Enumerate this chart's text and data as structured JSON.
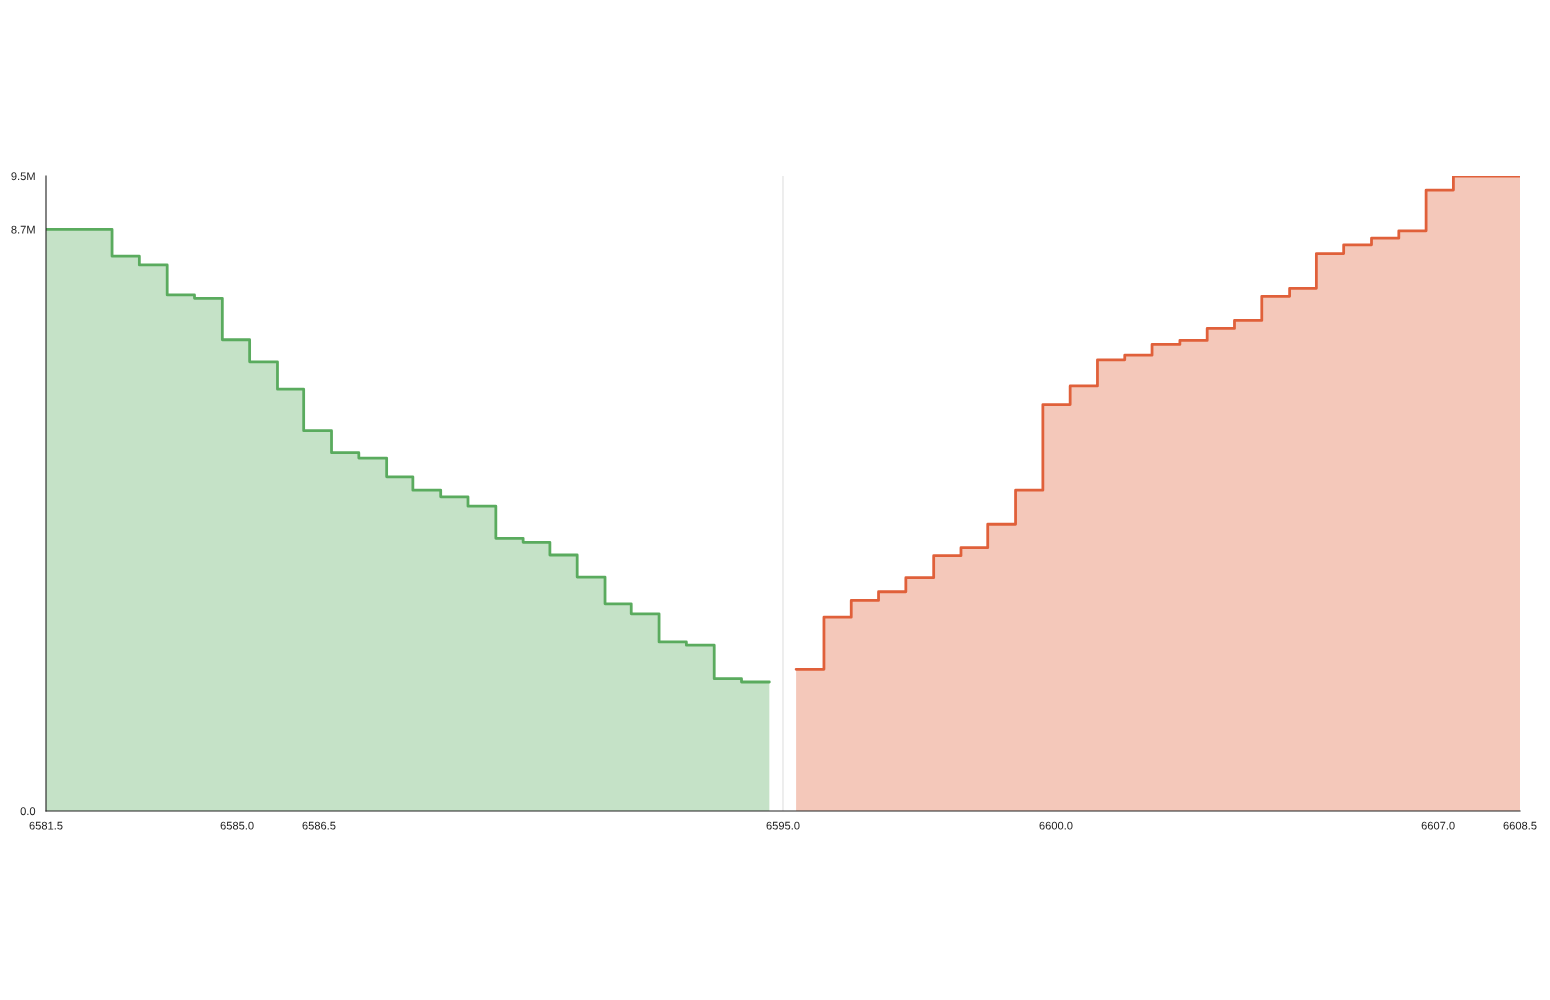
{
  "chart_data": {
    "type": "area",
    "series": [
      {
        "color": "#5aab5e",
        "x": [
          6581.5,
          6582.71,
          6582.71,
          6583.21,
          6583.21,
          6583.72,
          6583.72,
          6584.22,
          6584.22,
          6584.73,
          6584.73,
          6585.23,
          6585.23,
          6585.74,
          6585.74,
          6586.22,
          6586.22,
          6586.73,
          6586.73,
          6587.23,
          6587.23,
          6587.74,
          6587.74,
          6588.22,
          6588.22,
          6588.73,
          6588.73,
          6589.23,
          6589.23,
          6589.74,
          6589.74,
          6590.24,
          6590.24,
          6590.73,
          6590.73,
          6591.23,
          6591.23,
          6591.74,
          6591.74,
          6592.22,
          6592.22,
          6592.73,
          6592.73,
          6593.23,
          6593.23,
          6593.74,
          6593.74,
          6594.24,
          6594.24,
          6594.75
        ],
        "values": [
          8.7,
          8.7,
          8.3,
          8.3,
          8.17,
          8.17,
          7.72,
          7.72,
          7.67,
          7.67,
          7.05,
          7.05,
          6.72,
          6.72,
          6.31,
          6.31,
          5.69,
          5.69,
          5.36,
          5.36,
          5.28,
          5.28,
          5.0,
          5.0,
          4.8,
          4.8,
          4.7,
          4.7,
          4.56,
          4.56,
          4.08,
          4.08,
          4.02,
          4.02,
          3.83,
          3.83,
          3.5,
          3.5,
          3.1,
          3.1,
          2.95,
          2.95,
          2.53,
          2.53,
          2.48,
          2.48,
          1.98,
          1.98,
          1.93,
          1.93
        ]
      },
      {
        "color": "#e0603a",
        "x": [
          6595.24,
          6595.75,
          6595.75,
          6596.25,
          6596.25,
          6596.75,
          6596.75,
          6597.25,
          6597.25,
          6597.76,
          6597.76,
          6598.26,
          6598.26,
          6598.75,
          6598.75,
          6599.26,
          6599.26,
          6599.76,
          6599.76,
          6600.26,
          6600.26,
          6600.76,
          6600.76,
          6601.26,
          6601.26,
          6601.76,
          6601.76,
          6602.27,
          6602.27,
          6602.77,
          6602.77,
          6603.27,
          6603.27,
          6603.77,
          6603.77,
          6604.28,
          6604.28,
          6604.77,
          6604.77,
          6605.27,
          6605.27,
          6605.78,
          6605.78,
          6606.28,
          6606.28,
          6606.78,
          6606.78,
          6607.28,
          6607.28,
          6608.5
        ],
        "values": [
          2.12,
          2.12,
          2.9,
          2.9,
          3.15,
          3.15,
          3.28,
          3.28,
          3.49,
          3.49,
          3.82,
          3.82,
          3.94,
          3.94,
          4.29,
          4.29,
          4.8,
          4.8,
          6.08,
          6.08,
          6.36,
          6.36,
          6.75,
          6.75,
          6.82,
          6.82,
          6.98,
          6.98,
          7.04,
          7.04,
          7.22,
          7.22,
          7.34,
          7.34,
          7.7,
          7.7,
          7.82,
          7.82,
          8.34,
          8.34,
          8.47,
          8.47,
          8.57,
          8.57,
          8.68,
          8.68,
          9.29,
          9.29,
          9.5,
          9.5
        ]
      }
    ],
    "xlim": [
      6581.5,
      6608.5
    ],
    "xticks": [
      6581.5,
      {
        "value": 6585,
        "label": "6585.0"
      },
      6586.5,
      {
        "value": 6595,
        "label": "6595.0"
      },
      {
        "value": 6600,
        "label": "6600.0"
      },
      {
        "value": 6607,
        "label": "6607.0"
      },
      6608.5
    ],
    "ylim": [
      0,
      9.5
    ],
    "yticks": [
      {
        "value": 0,
        "label": "0.0"
      },
      {
        "value": 8.7,
        "label": "8.7M"
      },
      {
        "value": 9.5,
        "label": "9.5M"
      }
    ],
    "ref_lines": [
      {
        "axis": "x",
        "value": 6595.0,
        "color": "#e6e6e6"
      }
    ],
    "grid": false,
    "legend": false
  }
}
